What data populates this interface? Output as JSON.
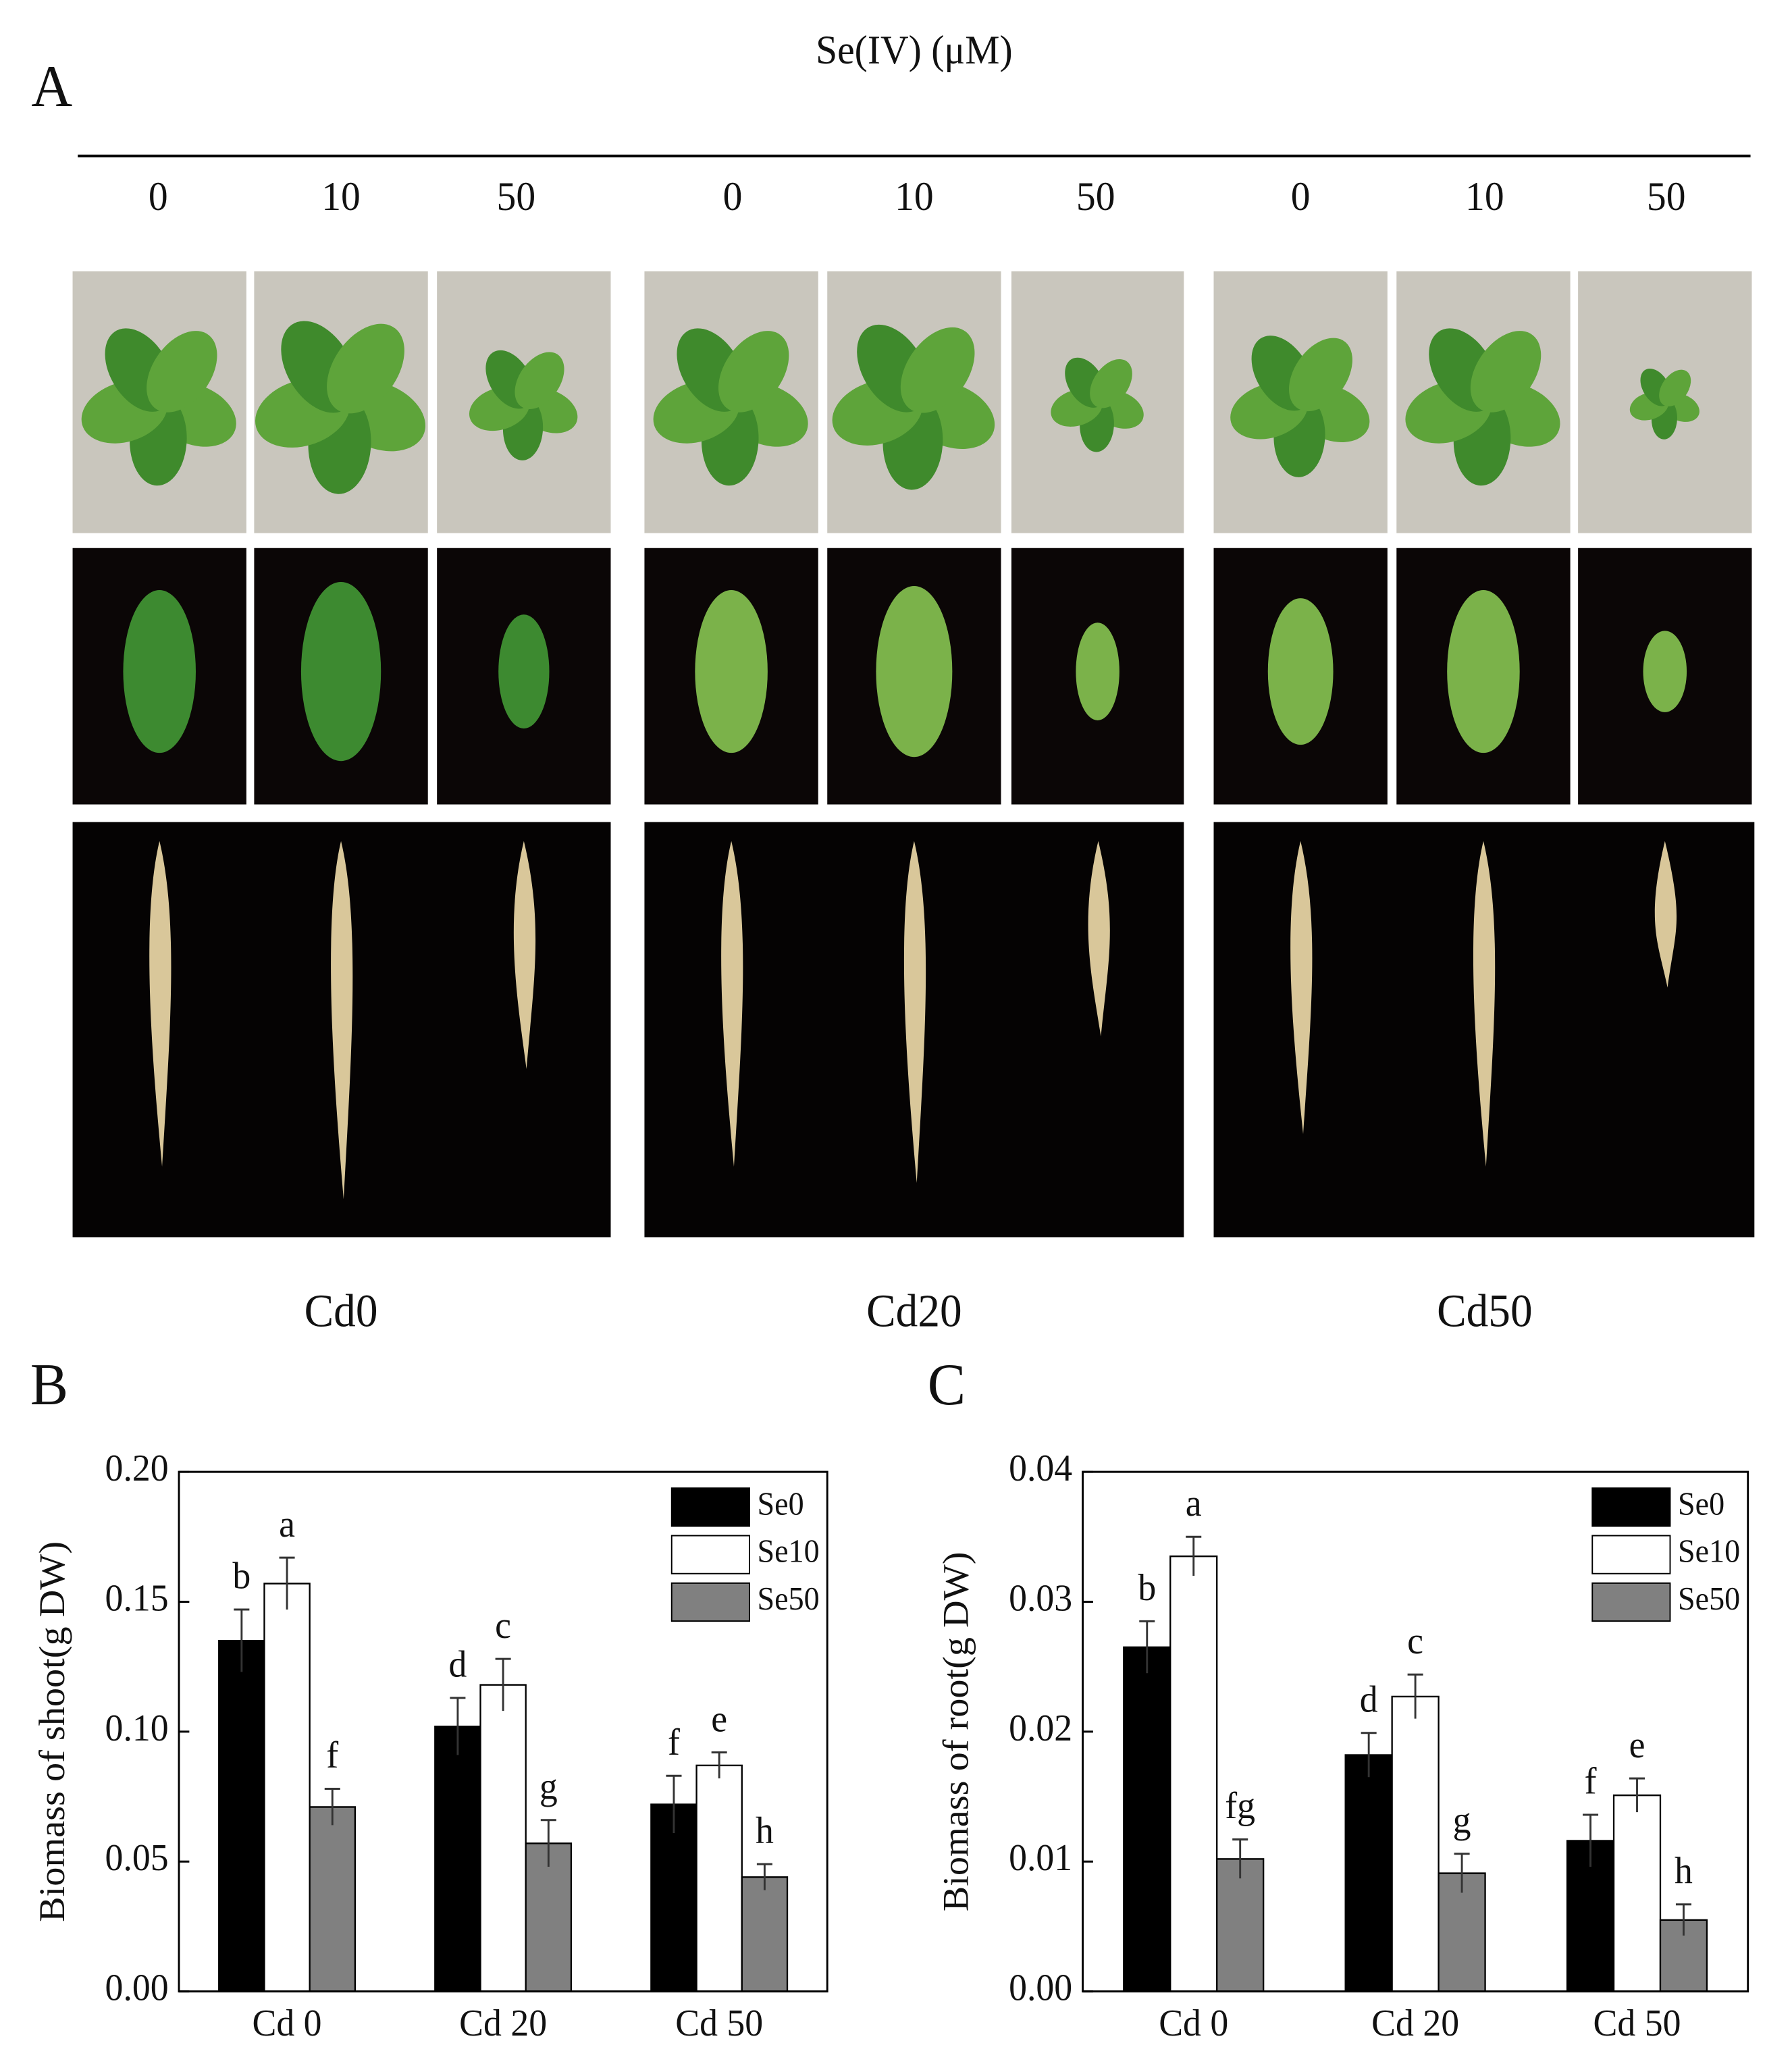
{
  "panel_a": {
    "label": "A",
    "title": "Se(IV) (μM)",
    "doses": [
      "0",
      "10",
      "50",
      "0",
      "10",
      "50",
      "0",
      "10",
      "50"
    ],
    "groups": [
      "Cd0",
      "Cd20",
      "Cd50"
    ]
  },
  "chart_data": [
    {
      "type": "bar",
      "panel_label": "B",
      "y_label": "Biomass of shoot(g DW)",
      "categories": [
        "Cd 0",
        "Cd 20",
        "Cd 50"
      ],
      "series": [
        {
          "name": "Se0",
          "color": "#000000",
          "values": [
            0.135,
            0.102,
            0.072
          ],
          "errors": [
            0.012,
            0.011,
            0.011
          ],
          "letters": [
            "b",
            "d",
            "f"
          ]
        },
        {
          "name": "Se10",
          "color": "#ffffff",
          "values": [
            0.157,
            0.118,
            0.087
          ],
          "errors": [
            0.01,
            0.01,
            0.005
          ],
          "letters": [
            "a",
            "c",
            "e"
          ]
        },
        {
          "name": "Se50",
          "color": "#808080",
          "values": [
            0.071,
            0.057,
            0.044
          ],
          "errors": [
            0.007,
            0.009,
            0.005
          ],
          "letters": [
            "f",
            "g",
            "h"
          ]
        }
      ],
      "ylim": [
        0,
        0.2
      ],
      "yticks": [
        {
          "value": 0,
          "label": "0.00"
        },
        {
          "value": 0.05,
          "label": "0.05"
        },
        {
          "value": 0.1,
          "label": "0.10"
        },
        {
          "value": 0.15,
          "label": "0.15"
        },
        {
          "value": 0.2,
          "label": "0.20"
        }
      ],
      "legend": "upper right"
    },
    {
      "type": "bar",
      "panel_label": "C",
      "y_label": "Biomass of root(g DW)",
      "categories": [
        "Cd 0",
        "Cd 20",
        "Cd 50"
      ],
      "series": [
        {
          "name": "Se0",
          "color": "#000000",
          "values": [
            0.0265,
            0.0182,
            0.0116
          ],
          "errors": [
            0.002,
            0.0017,
            0.002
          ],
          "letters": [
            "b",
            "d",
            "f"
          ]
        },
        {
          "name": "Se10",
          "color": "#ffffff",
          "values": [
            0.0335,
            0.0227,
            0.0151
          ],
          "errors": [
            0.0015,
            0.0017,
            0.0013
          ],
          "letters": [
            "a",
            "c",
            "e"
          ]
        },
        {
          "name": "Se50",
          "color": "#808080",
          "values": [
            0.0102,
            0.0091,
            0.0055
          ],
          "errors": [
            0.0015,
            0.0015,
            0.0012
          ],
          "letters": [
            "fg",
            "g",
            "h"
          ]
        }
      ],
      "ylim": [
        0,
        0.04
      ],
      "yticks": [
        {
          "value": 0,
          "label": "0.00"
        },
        {
          "value": 0.01,
          "label": "0.01"
        },
        {
          "value": 0.02,
          "label": "0.02"
        },
        {
          "value": 0.03,
          "label": "0.03"
        },
        {
          "value": 0.04,
          "label": "0.04"
        }
      ],
      "legend": "upper right"
    }
  ]
}
